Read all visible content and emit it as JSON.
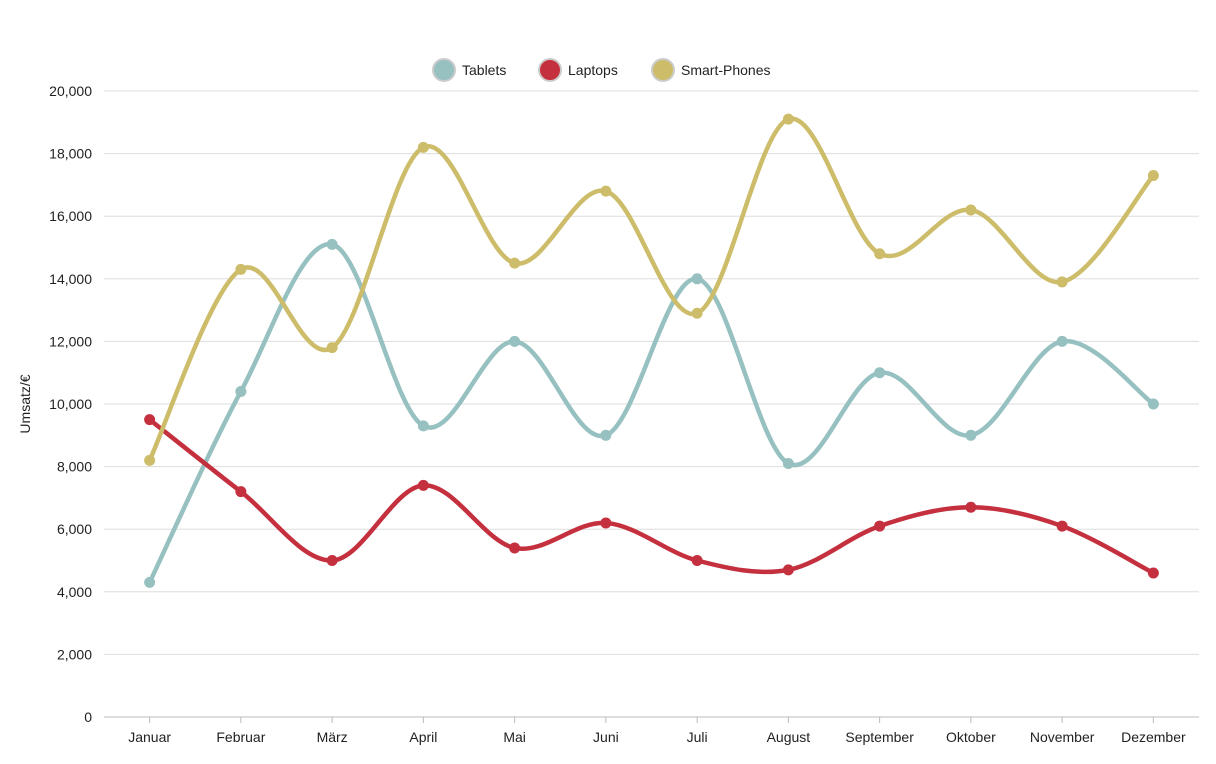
{
  "chart_data": {
    "type": "line",
    "title": "",
    "xlabel": "",
    "ylabel": "Umsatz/€",
    "ylim": [
      0,
      20000
    ],
    "yticks": [
      "0",
      "2,000",
      "4,000",
      "6,000",
      "8,000",
      "10,000",
      "12,000",
      "14,000",
      "16,000",
      "18,000",
      "20,000"
    ],
    "grid": true,
    "legend_position": "top",
    "smooth": true,
    "categories": [
      "Januar",
      "Februar",
      "März",
      "April",
      "Mai",
      "Juni",
      "Juli",
      "August",
      "September",
      "Oktober",
      "November",
      "Dezember"
    ],
    "series": [
      {
        "name": "Tablets",
        "color": "#97c1c0",
        "values": [
          4300,
          10400,
          15100,
          9300,
          12000,
          9000,
          14000,
          8100,
          11000,
          9000,
          12000,
          10000
        ]
      },
      {
        "name": "Laptops",
        "color": "#c5303f",
        "values": [
          9500,
          7200,
          5000,
          7400,
          5400,
          6200,
          5000,
          4700,
          6100,
          6700,
          6100,
          4600
        ]
      },
      {
        "name": "Smart-Phones",
        "color": "#cdbd6a",
        "values": [
          8200,
          14300,
          11800,
          18200,
          14500,
          16800,
          12900,
          19100,
          14800,
          16200,
          13900,
          17300
        ]
      }
    ]
  }
}
